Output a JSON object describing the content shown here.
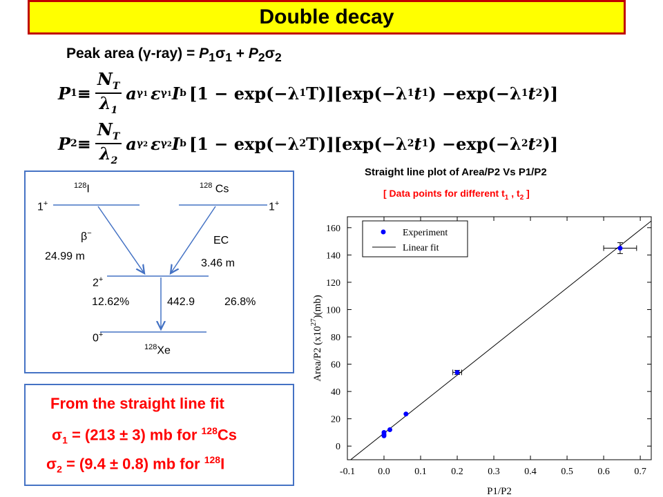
{
  "title": "Double decay",
  "peak_area": {
    "prefix": "Peak area (",
    "gamma": "γ",
    "rest": "-ray) = ",
    "p1": "P",
    "p1_sub": "1",
    "sigma1": "σ",
    "sigma1_sub": "1",
    "plus": " + ",
    "p2": "P",
    "p2_sub": "2",
    "sigma2": "σ",
    "sigma2_sub": "2"
  },
  "formula1": {
    "lhs": "P",
    "lhs_sub": "1",
    "equiv": "≡",
    "num": "N",
    "num_sub": "T",
    "den": "λ",
    "den_sub": "1",
    "a": "a",
    "a_sub": "γ",
    "a_sub2": "1",
    "eps": "ε",
    "eps_sub": "γ",
    "eps_sub2": "1",
    "ib": "I",
    "ib_sub": "b",
    "bracket1_pre": "[1 − exp(−λ",
    "bracket1_sub": "1",
    "bracket1_post": "T)][exp(−λ",
    "bracket2_sub": "1",
    "bracket2_mid": "t",
    "bracket2_tsub": "1",
    "bracket2_post": ") −exp(−λ",
    "bracket3_sub": "1",
    "bracket3_mid": "t",
    "bracket3_tsub": "2",
    "end": ")]"
  },
  "formula2": {
    "lhs": "P",
    "lhs_sub": "2",
    "equiv": "≡",
    "num": "N",
    "num_sub": "T",
    "den": "λ",
    "den_sub": "2",
    "a": "a",
    "a_sub": "γ",
    "a_sub2": "2",
    "eps": "ε",
    "eps_sub": "γ",
    "eps_sub2": "2",
    "ib": "I",
    "ib_sub": "b",
    "bracket1_pre": "[1 − exp(−λ",
    "bracket1_sub": "2",
    "bracket1_post": "T)][exp(−λ",
    "bracket2_sub": "2",
    "bracket2_mid": "t",
    "bracket2_tsub": "1",
    "bracket2_post": ") −exp(−λ",
    "bracket3_sub": "2",
    "bracket3_mid": "t",
    "bracket3_tsub": "2",
    "end": ")]"
  },
  "scheme": {
    "i128_mass": "128",
    "i128_sym": "I",
    "cs128_mass": "128",
    "cs128_sym": " Cs",
    "left_spin": "1",
    "left_spin_sup": "+",
    "right_spin": "1",
    "right_spin_sup": "+",
    "beta": "β",
    "beta_sup": "−",
    "beta_halflife": "24.99 m",
    "ec": "EC",
    "ec_halflife": "3.46 m",
    "mid_spin": "2",
    "mid_spin_sup": "+",
    "left_pct": "12.62%",
    "energy": "442.9",
    "right_pct": "26.8%",
    "ground_spin": "0",
    "ground_spin_sup": "+",
    "xe128_mass": "128",
    "xe128_sym": "Xe"
  },
  "results": {
    "heading": "From the straight line fit",
    "line1_sigma": "σ",
    "line1_sub": "1",
    "line1_text": " = (213 ± 3) mb  for ",
    "line1_mass": "128",
    "line1_nuc": "Cs",
    "line2_sigma": "σ",
    "line2_sub": "2",
    "line2_text": " = (9.4 ± 0.8) mb  for ",
    "line2_mass": "128",
    "line2_nuc": "I"
  },
  "chart_title": "Straight line plot of Area/P2 Vs P1/P2",
  "chart_subtitle_pre": "[ Data points for different t",
  "chart_subtitle_sub1": "1",
  "chart_subtitle_mid": " , t",
  "chart_subtitle_sub2": "2",
  "chart_subtitle_post": " ]",
  "chart_data": {
    "type": "scatter",
    "xlabel": "P1/P2",
    "ylabel": "Area/P2 (x10",
    "ylabel_sup": "27",
    "ylabel_end": ")(mb)",
    "xlim": [
      -0.1,
      0.73
    ],
    "ylim": [
      -10,
      168
    ],
    "xticks": [
      -0.1,
      0.0,
      0.1,
      0.2,
      0.3,
      0.4,
      0.5,
      0.6,
      0.7
    ],
    "xtick_labels": [
      "-0.1",
      "0.0",
      "0.1",
      "0.2",
      "0.3",
      "0.4",
      "0.5",
      "0.6",
      "0.7"
    ],
    "yticks": [
      0,
      20,
      40,
      60,
      80,
      100,
      120,
      140,
      160
    ],
    "ytick_labels": [
      "0",
      "20",
      "40",
      "60",
      "80",
      "100",
      "120",
      "140",
      "160"
    ],
    "legend_position": "top-left",
    "series": [
      {
        "name": "Experiment",
        "type": "scatter",
        "color": "#0000ff",
        "points": [
          {
            "x": 0.0,
            "y": 7.5,
            "xerr": 0.0,
            "yerr": 0.0
          },
          {
            "x": 0.0,
            "y": 8.5,
            "xerr": 0.0,
            "yerr": 0.0
          },
          {
            "x": 0.0,
            "y": 10.0,
            "xerr": 0.0,
            "yerr": 0.0
          },
          {
            "x": 0.016,
            "y": 12.0,
            "xerr": 0.0,
            "yerr": 0.0
          },
          {
            "x": 0.06,
            "y": 23.5,
            "xerr": 0.0,
            "yerr": 0.0
          },
          {
            "x": 0.2,
            "y": 54.0,
            "xerr": 0.012,
            "yerr": 1.5
          },
          {
            "x": 0.645,
            "y": 145.0,
            "xerr": 0.045,
            "yerr": 4.0
          }
        ]
      },
      {
        "name": "Linear fit",
        "type": "line",
        "color": "#000000",
        "slope": 213,
        "intercept": 9.4
      }
    ]
  }
}
